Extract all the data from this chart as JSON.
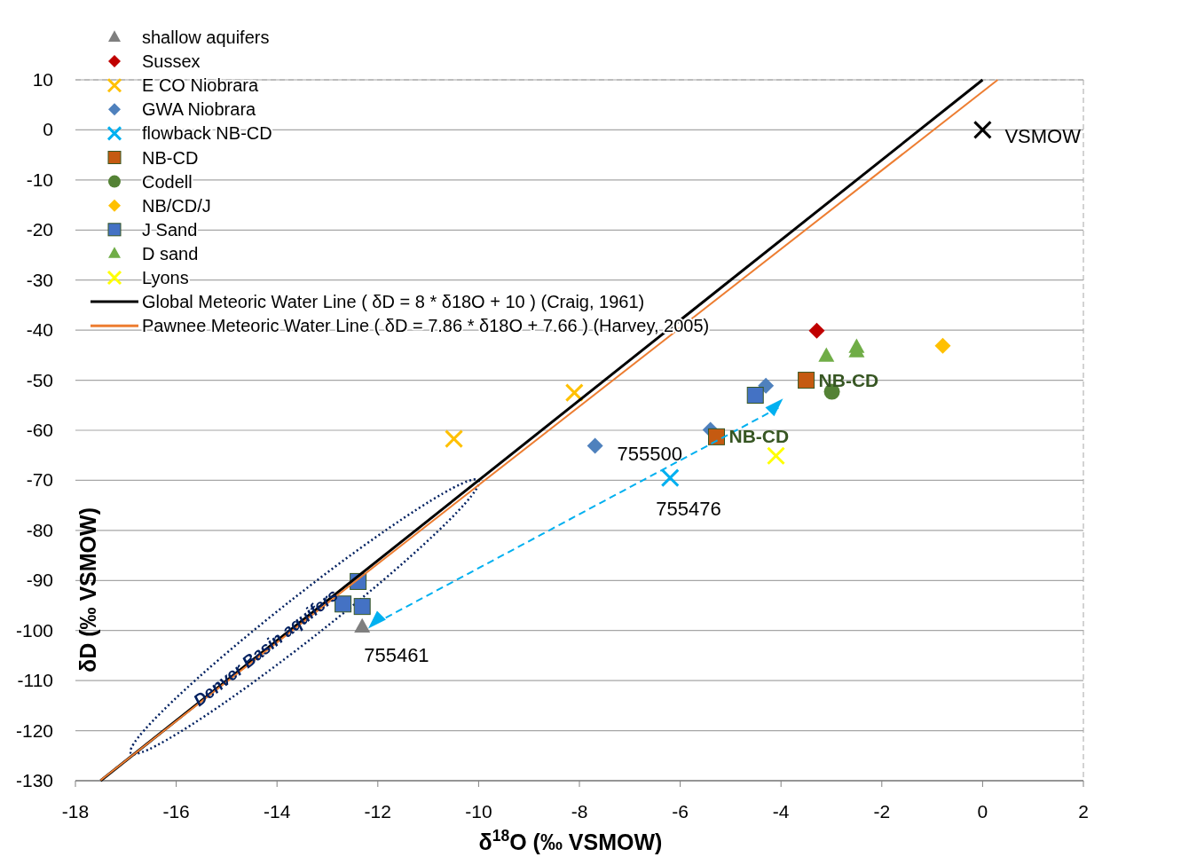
{
  "chart_data": {
    "type": "scatter",
    "xlabel": "δ$^{18}$O (‰ VSMOW)",
    "ylabel": "δD (‰ VSMOW)",
    "xlim": [
      -18,
      2
    ],
    "xticks": [
      -18,
      -16,
      -14,
      -12,
      -10,
      -8,
      -6,
      -4,
      -2,
      0,
      2
    ],
    "ylim": [
      -130,
      10
    ],
    "yticks": [
      -130,
      -120,
      -110,
      -100,
      -90,
      -80,
      -70,
      -60,
      -50,
      -40,
      -30,
      -20,
      -10,
      0,
      10
    ],
    "grid": "y",
    "legend": "top left",
    "series": [
      {
        "name": "shallow aquifers",
        "color": "#7f7f7f",
        "marker": "triangle",
        "x": [
          -12.31
        ],
        "values": [
          -99.3
        ]
      },
      {
        "name": "Sussex",
        "color": "#c00000",
        "marker": "diamond",
        "x": [
          -3.29
        ],
        "values": [
          -40.1
        ]
      },
      {
        "name": "E CO Niobrara",
        "color": "#ffc000",
        "marker": "cross",
        "x": [
          -8.1,
          -10.49
        ],
        "values": [
          -52.5,
          -61.7
        ]
      },
      {
        "name": "GWA Niobrara",
        "color": "#4f81bd",
        "marker": "diamond",
        "x": [
          -7.69,
          -5.4,
          -4.3
        ],
        "values": [
          -63.1,
          -59.9,
          -51.1
        ]
      },
      {
        "name": "flowback NB-CD",
        "color": "#00b0f0",
        "marker": "cross",
        "x": [
          -6.2
        ],
        "values": [
          -69.5
        ]
      },
      {
        "name": "NB-CD",
        "color": "#c55a11",
        "marker": "square",
        "x": [
          -5.28,
          -3.5
        ],
        "values": [
          -61.3,
          -50.0
        ]
      },
      {
        "name": "Codell",
        "color": "#548235",
        "marker": "circle",
        "x": [
          -2.99
        ],
        "values": [
          -52.3
        ]
      },
      {
        "name": "NB/CD/J",
        "color": "#ffc000",
        "marker": "diamond",
        "x": [
          -0.79
        ],
        "values": [
          -43.1
        ]
      },
      {
        "name": "J Sand",
        "color": "#4472c4",
        "marker": "square",
        "x": [
          -4.51,
          -12.39,
          -12.69,
          -12.31
        ],
        "values": [
          -53.0,
          -90.2,
          -94.7,
          -95.2
        ]
      },
      {
        "name": "D sand",
        "color": "#70ad47",
        "marker": "triangle",
        "x": [
          -3.1,
          -2.5,
          -2.5
        ],
        "values": [
          -45.2,
          -43.4,
          -44.3
        ]
      },
      {
        "name": "Lyons",
        "color": "#ffff00",
        "marker": "cross",
        "x": [
          -4.1
        ],
        "values": [
          -65.1
        ]
      },
      {
        "name": "Global Meteoric Water Line ( δD =  8 * δ18O + 10 ) (Craig, 1961)",
        "type": "line",
        "color": "#000000",
        "x": [
          -17.5,
          0
        ],
        "values": [
          -130,
          10
        ]
      },
      {
        "name": "Pawnee Meteoric Water Line ( δD =  7.86 * δ18O + 7.66 ) (Harvey, 2005)",
        "type": "line",
        "color": "#ed7d31",
        "x": [
          -17.5,
          0.3
        ],
        "values": [
          -129.9,
          10.0
        ]
      },
      {
        "color": "#000000",
        "marker": "cross",
        "x": [
          0
        ],
        "values": [
          0
        ]
      }
    ],
    "annotations": [
      {
        "text": "VSMOW",
        "x": 0,
        "y": 0
      },
      {
        "text": "755500",
        "x": -7.69,
        "y": -63.1
      },
      {
        "text": "755476",
        "x": -6.2,
        "y": -69.5
      },
      {
        "text": "755461",
        "x": -12.31,
        "y": -99.3
      },
      {
        "text": "NB-CD",
        "x": -3.5,
        "y": -50.0
      },
      {
        "text": "NB-CD",
        "x": -5.28,
        "y": -61.3
      },
      "Denver Basin aquifers"
    ]
  }
}
